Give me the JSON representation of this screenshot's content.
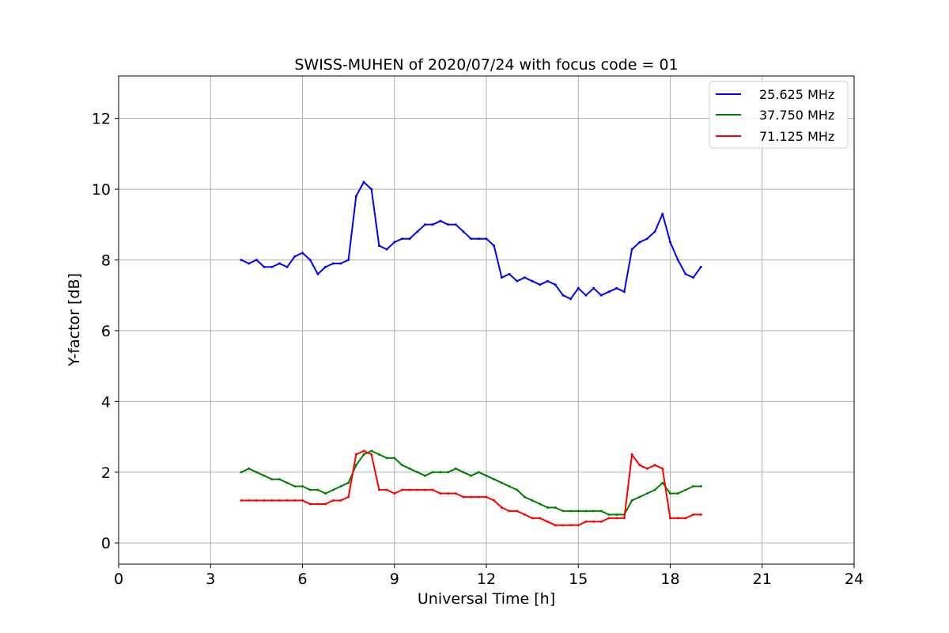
{
  "chart_data": {
    "type": "line",
    "title": "SWISS-MUHEN of 2020/07/24 with focus code = 01",
    "xlabel": "Universal Time [h]",
    "ylabel": "Y-factor [dB]",
    "xlim": [
      0,
      24
    ],
    "ylim": [
      -0.6,
      13.2
    ],
    "xticks": [
      0,
      3,
      6,
      9,
      12,
      15,
      18,
      21,
      24
    ],
    "yticks": [
      0,
      2,
      4,
      6,
      8,
      10,
      12
    ],
    "grid": true,
    "legend_position": "top-right",
    "series": [
      {
        "name": "25.625 MHz",
        "color": "#0000ff",
        "x": [
          4.0,
          4.25,
          4.5,
          4.75,
          5.0,
          5.25,
          5.5,
          5.75,
          6.0,
          6.25,
          6.5,
          6.75,
          7.0,
          7.25,
          7.5,
          7.75,
          8.0,
          8.25,
          8.5,
          8.75,
          9.0,
          9.25,
          9.5,
          9.75,
          10.0,
          10.25,
          10.5,
          10.75,
          11.0,
          11.25,
          11.5,
          11.75,
          12.0,
          12.25,
          12.5,
          12.75,
          13.0,
          13.25,
          13.5,
          13.75,
          14.0,
          14.25,
          14.5,
          14.75,
          15.0,
          15.25,
          15.5,
          15.75,
          16.0,
          16.25,
          16.5,
          16.75,
          17.0,
          17.25,
          17.5,
          17.75,
          18.0,
          18.25,
          18.5,
          18.75,
          19.0
        ],
        "y": [
          8.0,
          7.9,
          8.0,
          7.8,
          7.8,
          7.9,
          7.8,
          8.1,
          8.2,
          8.0,
          7.6,
          7.8,
          7.9,
          7.9,
          8.0,
          9.8,
          10.2,
          10.0,
          8.4,
          8.3,
          8.5,
          8.6,
          8.6,
          8.8,
          9.0,
          9.0,
          9.1,
          9.0,
          9.0,
          8.8,
          8.6,
          8.6,
          8.6,
          8.4,
          7.5,
          7.6,
          7.4,
          7.5,
          7.4,
          7.3,
          7.4,
          7.3,
          7.0,
          6.9,
          7.2,
          7.0,
          7.2,
          7.0,
          7.1,
          7.2,
          7.1,
          8.3,
          8.5,
          8.6,
          8.8,
          9.3,
          8.5,
          8.0,
          7.6,
          7.5,
          7.8
        ]
      },
      {
        "name": "37.750 MHz",
        "color": "#008000",
        "x": [
          4.0,
          4.25,
          4.5,
          4.75,
          5.0,
          5.25,
          5.5,
          5.75,
          6.0,
          6.25,
          6.5,
          6.75,
          7.0,
          7.25,
          7.5,
          7.75,
          8.0,
          8.25,
          8.5,
          8.75,
          9.0,
          9.25,
          9.5,
          9.75,
          10.0,
          10.25,
          10.5,
          10.75,
          11.0,
          11.25,
          11.5,
          11.75,
          12.0,
          12.25,
          12.5,
          12.75,
          13.0,
          13.25,
          13.5,
          13.75,
          14.0,
          14.25,
          14.5,
          14.75,
          15.0,
          15.25,
          15.5,
          15.75,
          16.0,
          16.25,
          16.5,
          16.75,
          17.0,
          17.25,
          17.5,
          17.75,
          18.0,
          18.25,
          18.5,
          18.75,
          19.0
        ],
        "y": [
          2.0,
          2.1,
          2.0,
          1.9,
          1.8,
          1.8,
          1.7,
          1.6,
          1.6,
          1.5,
          1.5,
          1.4,
          1.5,
          1.6,
          1.7,
          2.2,
          2.5,
          2.6,
          2.5,
          2.4,
          2.4,
          2.2,
          2.1,
          2.0,
          1.9,
          2.0,
          2.0,
          2.0,
          2.1,
          2.0,
          1.9,
          2.0,
          1.9,
          1.8,
          1.7,
          1.6,
          1.5,
          1.3,
          1.2,
          1.1,
          1.0,
          1.0,
          0.9,
          0.9,
          0.9,
          0.9,
          0.9,
          0.9,
          0.8,
          0.8,
          0.8,
          1.2,
          1.3,
          1.4,
          1.5,
          1.7,
          1.4,
          1.4,
          1.5,
          1.6,
          1.6
        ]
      },
      {
        "name": "71.125 MHz",
        "color": "#ff0000",
        "x": [
          4.0,
          4.25,
          4.5,
          4.75,
          5.0,
          5.25,
          5.5,
          5.75,
          6.0,
          6.25,
          6.5,
          6.75,
          7.0,
          7.25,
          7.5,
          7.75,
          8.0,
          8.25,
          8.5,
          8.75,
          9.0,
          9.25,
          9.5,
          9.75,
          10.0,
          10.25,
          10.5,
          10.75,
          11.0,
          11.25,
          11.5,
          11.75,
          12.0,
          12.25,
          12.5,
          12.75,
          13.0,
          13.25,
          13.5,
          13.75,
          14.0,
          14.25,
          14.5,
          14.75,
          15.0,
          15.25,
          15.5,
          15.75,
          16.0,
          16.25,
          16.5,
          16.75,
          17.0,
          17.25,
          17.5,
          17.75,
          18.0,
          18.25,
          18.5,
          18.75,
          19.0
        ],
        "y": [
          1.2,
          1.2,
          1.2,
          1.2,
          1.2,
          1.2,
          1.2,
          1.2,
          1.2,
          1.1,
          1.1,
          1.1,
          1.2,
          1.2,
          1.3,
          2.5,
          2.6,
          2.5,
          1.5,
          1.5,
          1.4,
          1.5,
          1.5,
          1.5,
          1.5,
          1.5,
          1.4,
          1.4,
          1.4,
          1.3,
          1.3,
          1.3,
          1.3,
          1.2,
          1.0,
          0.9,
          0.9,
          0.8,
          0.7,
          0.7,
          0.6,
          0.5,
          0.5,
          0.5,
          0.5,
          0.6,
          0.6,
          0.6,
          0.7,
          0.7,
          0.7,
          2.5,
          2.2,
          2.1,
          2.2,
          2.1,
          0.7,
          0.7,
          0.7,
          0.8,
          0.8
        ]
      }
    ]
  }
}
